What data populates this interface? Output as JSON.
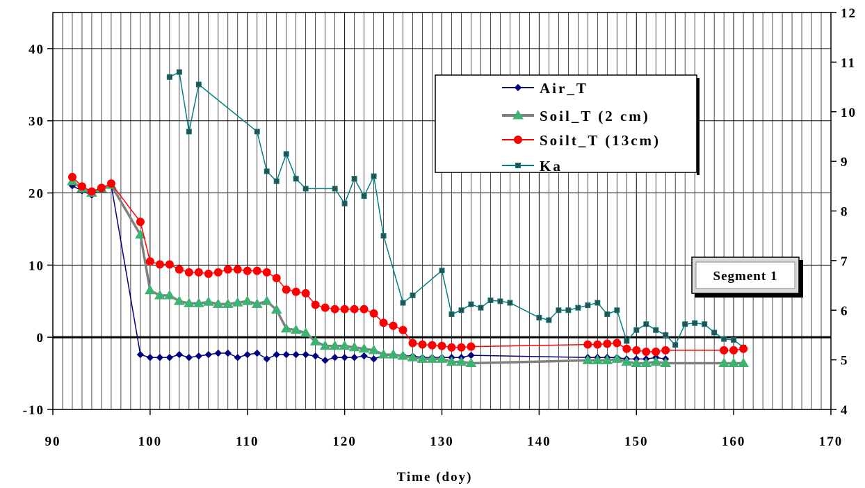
{
  "chart_data": {
    "type": "line",
    "xlabel": "Time (doy)",
    "ylabel": "",
    "y2label": "",
    "xlim": [
      90,
      170
    ],
    "ylim": [
      -10,
      45
    ],
    "y2lim": [
      4,
      12
    ],
    "x_ticks": [
      "90",
      "100",
      "110",
      "120",
      "130",
      "140",
      "150",
      "160",
      "170"
    ],
    "y_ticks": [
      "-10",
      "0",
      "10",
      "20",
      "30",
      "40"
    ],
    "y2_ticks": [
      "4",
      "5",
      "6",
      "7",
      "8",
      "9",
      "10",
      "11",
      "12"
    ],
    "annotation": "Segment 1",
    "grid": "vertical lines every 1 doy; horizontal lines every 10 units",
    "legend_position": "upper-right",
    "series": [
      {
        "name": "Air_T",
        "axis": "left",
        "color": "#000080",
        "marker": "diamond",
        "x": [
          92,
          93,
          94,
          95,
          96,
          99,
          100,
          101,
          102,
          103,
          104,
          105,
          106,
          107,
          108,
          109,
          110,
          111,
          112,
          113,
          114,
          115,
          116,
          117,
          118,
          119,
          120,
          121,
          122,
          123,
          124,
          125,
          126,
          127,
          128,
          129,
          130,
          131,
          132,
          133,
          145,
          146,
          147,
          148,
          149,
          150,
          151,
          152,
          153
        ],
        "y": [
          21,
          20.3,
          19.7,
          20.6,
          21.1,
          -2.4,
          -2.8,
          -2.8,
          -2.8,
          -2.4,
          -2.8,
          -2.6,
          -2.4,
          -2.2,
          -2.2,
          -2.8,
          -2.4,
          -2.2,
          -3.0,
          -2.4,
          -2.4,
          -2.4,
          -2.4,
          -2.6,
          -3.2,
          -2.8,
          -2.8,
          -2.8,
          -2.6,
          -3.0,
          -2.5,
          -2.5,
          -2.5,
          -2.6,
          -2.8,
          -2.8,
          -2.8,
          -2.8,
          -2.8,
          -2.5,
          -2.8,
          -2.8,
          -2.8,
          -2.8,
          -3.0,
          -3.0,
          -3.0,
          -2.8,
          -3.0
        ]
      },
      {
        "name": "Soil_T (2 cm)",
        "axis": "left",
        "color": "#808080",
        "marker_color": "#3CB371",
        "marker": "triangle",
        "x": [
          92,
          93,
          94,
          95,
          96,
          99,
          100,
          101,
          102,
          103,
          104,
          105,
          106,
          107,
          108,
          109,
          110,
          111,
          112,
          113,
          114,
          115,
          116,
          117,
          118,
          119,
          120,
          121,
          122,
          123,
          124,
          125,
          126,
          127,
          128,
          129,
          130,
          131,
          132,
          133,
          145,
          146,
          147,
          148,
          149,
          150,
          151,
          152,
          153,
          159,
          160,
          161
        ],
        "y": [
          21.6,
          20.6,
          20.0,
          20.6,
          21.1,
          14.2,
          6.5,
          5.8,
          5.8,
          5.0,
          4.7,
          4.7,
          4.9,
          4.6,
          4.6,
          4.8,
          5.0,
          4.6,
          5.0,
          3.8,
          1.2,
          1.0,
          0.6,
          -0.6,
          -1.2,
          -1.2,
          -1.2,
          -1.4,
          -1.6,
          -1.8,
          -2.4,
          -2.4,
          -2.6,
          -2.8,
          -3.0,
          -3.0,
          -3.0,
          -3.4,
          -3.4,
          -3.6,
          -3.2,
          -3.2,
          -3.2,
          -3.0,
          -3.4,
          -3.6,
          -3.6,
          -3.4,
          -3.6,
          -3.6,
          -3.6,
          -3.6
        ]
      },
      {
        "name": "Soilt_T (13cm)",
        "axis": "left",
        "color": "#FF0000",
        "marker": "circle",
        "x": [
          92,
          93,
          94,
          95,
          96,
          99,
          100,
          101,
          102,
          103,
          104,
          105,
          106,
          107,
          108,
          109,
          110,
          111,
          112,
          113,
          114,
          115,
          116,
          117,
          118,
          119,
          120,
          121,
          122,
          123,
          124,
          125,
          126,
          127,
          128,
          129,
          130,
          131,
          132,
          133,
          145,
          146,
          147,
          148,
          149,
          150,
          151,
          152,
          153,
          159,
          160,
          161
        ],
        "y": [
          22.2,
          20.9,
          20.2,
          20.7,
          21.3,
          16.0,
          10.5,
          10.1,
          10.1,
          9.4,
          9.0,
          9.0,
          8.8,
          9.0,
          9.4,
          9.4,
          9.2,
          9.2,
          9.0,
          8.2,
          6.6,
          6.3,
          6.1,
          4.5,
          4.1,
          3.9,
          3.9,
          3.9,
          3.9,
          3.3,
          2.0,
          1.6,
          1.0,
          -0.8,
          -1.0,
          -1.1,
          -1.2,
          -1.4,
          -1.4,
          -1.3,
          -1.0,
          -1.0,
          -0.9,
          -0.8,
          -1.6,
          -1.8,
          -2.0,
          -2.0,
          -1.8,
          -1.8,
          -1.8,
          -1.6
        ]
      },
      {
        "name": "Ka",
        "axis": "right",
        "color": "#008080",
        "marker": "square",
        "x": [
          102,
          103,
          104,
          105,
          111,
          112,
          113,
          114,
          115,
          116,
          119,
          120,
          121,
          122,
          123,
          124,
          126,
          127,
          130,
          131,
          132,
          133,
          134,
          135,
          136,
          137,
          140,
          141,
          142,
          143,
          144,
          145,
          146,
          147,
          148,
          149,
          150,
          151,
          152,
          153,
          154,
          155,
          156,
          157,
          158,
          159,
          160,
          161
        ],
        "y": [
          10.7,
          10.8,
          9.6,
          10.55,
          9.6,
          8.8,
          8.6,
          9.15,
          8.65,
          8.45,
          8.45,
          8.15,
          8.65,
          8.3,
          8.7,
          7.5,
          6.15,
          6.3,
          6.8,
          5.92,
          6.0,
          6.12,
          6.05,
          6.2,
          6.18,
          6.15,
          5.85,
          5.8,
          6.0,
          6.0,
          6.05,
          6.1,
          6.15,
          5.92,
          6.0,
          5.38,
          5.6,
          5.72,
          5.6,
          5.5,
          5.3,
          5.72,
          5.74,
          5.72,
          5.55,
          5.42,
          5.4,
          5.25
        ]
      }
    ]
  }
}
